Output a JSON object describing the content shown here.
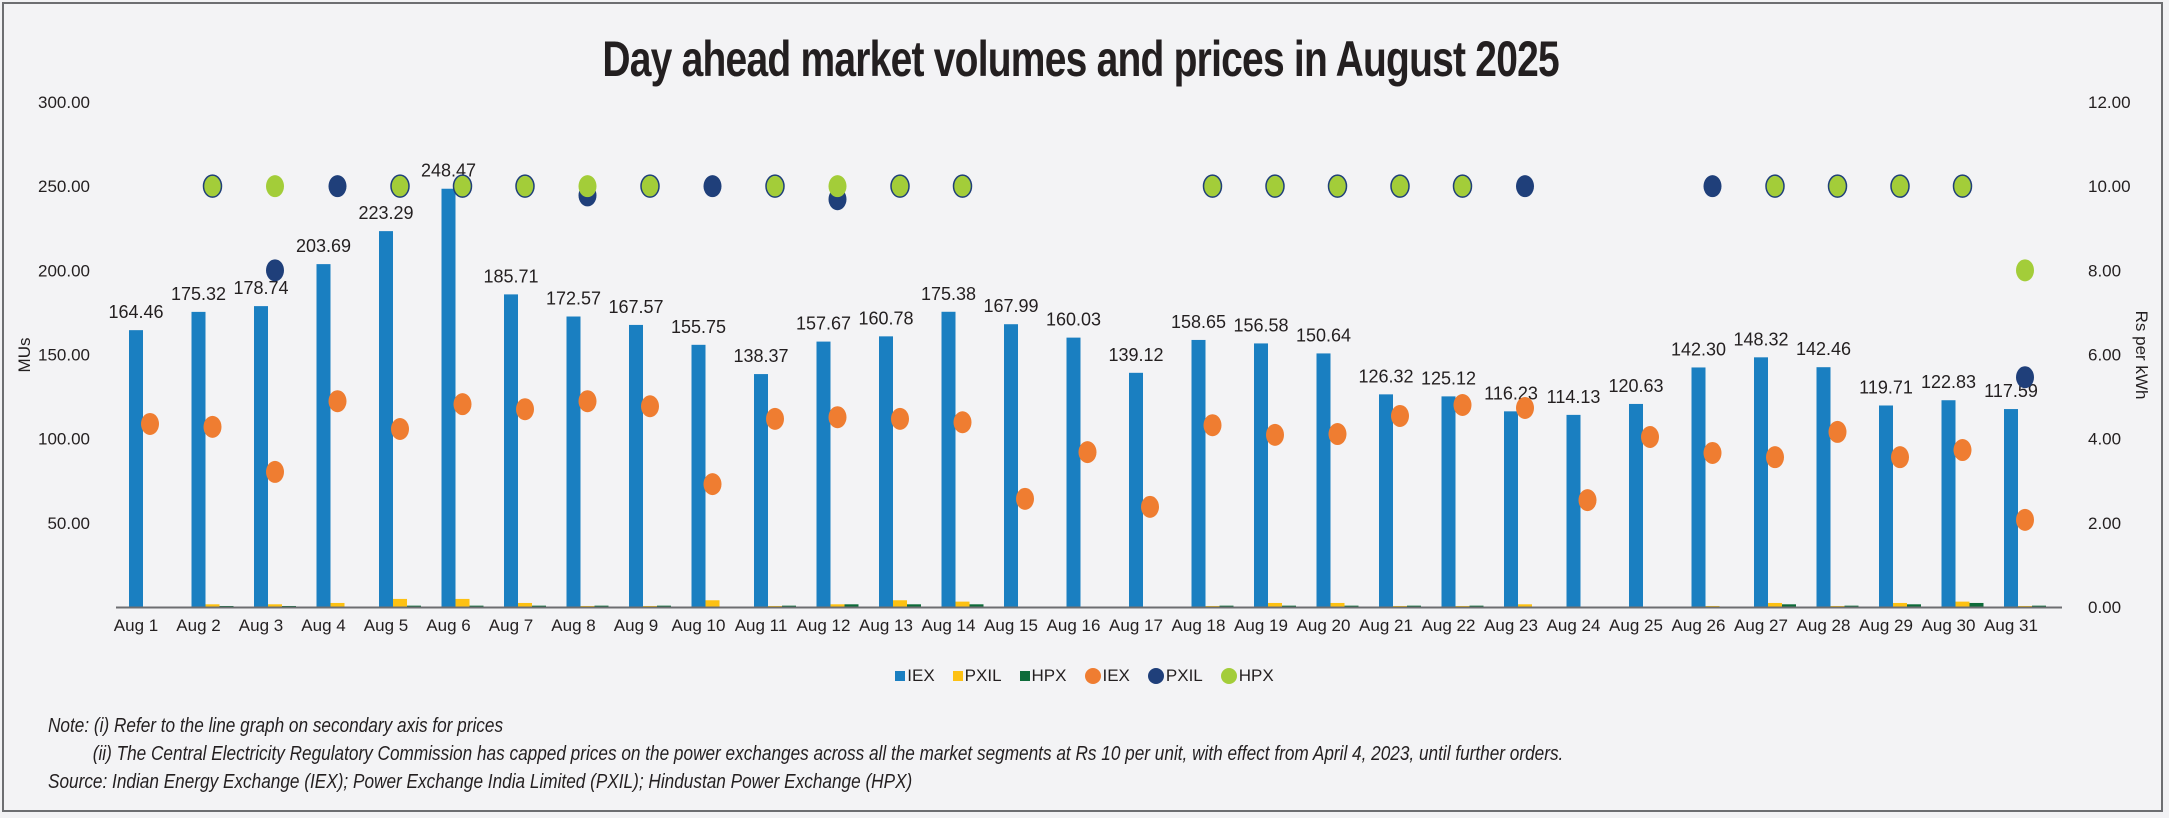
{
  "chart_data": {
    "type": "bar",
    "title": "Day ahead market volumes and prices in August 2025",
    "xlabel": "",
    "ylabel": "MUs",
    "y2label": "Rs per kWh",
    "ylim": [
      0,
      300
    ],
    "y2lim": [
      0,
      12
    ],
    "yticks": [
      "50.00",
      "100.00",
      "150.00",
      "200.00",
      "250.00",
      "300.00"
    ],
    "y2ticks": [
      "0.00",
      "2.00",
      "4.00",
      "6.00",
      "8.00",
      "10.00",
      "12.00"
    ],
    "grid": false,
    "legend_position": "bottom",
    "categories": [
      "Aug 1",
      "Aug 2",
      "Aug 3",
      "Aug 4",
      "Aug 5",
      "Aug 6",
      "Aug 7",
      "Aug 8",
      "Aug 9",
      "Aug 10",
      "Aug 11",
      "Aug 12",
      "Aug 13",
      "Aug 14",
      "Aug 15",
      "Aug 16",
      "Aug 17",
      "Aug 18",
      "Aug 19",
      "Aug 20",
      "Aug 21",
      "Aug 22",
      "Aug 23",
      "Aug 24",
      "Aug 25",
      "Aug 26",
      "Aug 27",
      "Aug 28",
      "Aug 29",
      "Aug 30",
      "Aug 31"
    ],
    "series": [
      {
        "name": "IEX",
        "kind": "bar",
        "axis": "primary",
        "color": "#1a7fc1",
        "values": [
          164.46,
          175.32,
          178.74,
          203.69,
          223.29,
          248.47,
          185.71,
          172.57,
          167.57,
          155.75,
          138.37,
          157.67,
          160.78,
          175.38,
          167.99,
          160.03,
          139.12,
          158.65,
          156.58,
          150.64,
          126.32,
          125.12,
          116.23,
          114.13,
          120.63,
          142.3,
          148.32,
          142.46,
          119.71,
          122.83,
          117.59
        ],
        "labels": [
          "164.46",
          "175.32",
          "178.74",
          "203.69",
          "223.29",
          "248.47",
          "185.71",
          "172.57",
          "167.57",
          "155.75",
          "138.37",
          "157.67",
          "160.78",
          "175.38",
          "167.99",
          "160.03",
          "139.12",
          "158.65",
          "156.58",
          "150.64",
          "126.32",
          "125.12",
          "116.23",
          "114.13",
          "120.63",
          "142.30",
          "148.32",
          "142.46",
          "119.71",
          "122.83",
          "117.59"
        ]
      },
      {
        "name": "PXIL",
        "kind": "bar",
        "axis": "primary",
        "color": "#fdc113",
        "values": [
          0,
          1.6,
          1.6,
          2.4,
          4.8,
          4.8,
          2.4,
          0.6,
          0.6,
          4.0,
          0.6,
          1.6,
          4.0,
          3.2,
          0,
          0,
          0,
          0.6,
          2.4,
          2.4,
          0.6,
          0.6,
          1.6,
          0,
          0,
          0.6,
          2.4,
          0.6,
          2.4,
          3.2,
          0.6
        ]
      },
      {
        "name": "HPX",
        "kind": "bar",
        "axis": "primary",
        "color": "#0e6b3a",
        "values": [
          0,
          0.6,
          0.6,
          0,
          0.8,
          0.8,
          0.8,
          0.8,
          0.8,
          0,
          0.8,
          1.6,
          1.6,
          1.6,
          0,
          0,
          0,
          0.8,
          0.8,
          0.8,
          0.8,
          0.8,
          0,
          0,
          0,
          0,
          1.6,
          0.8,
          1.6,
          2.4,
          0.8
        ]
      },
      {
        "name": "IEX",
        "kind": "marker",
        "axis": "secondary",
        "color": "#ef7d31",
        "values": [
          4.35,
          4.28,
          3.21,
          4.89,
          4.23,
          4.82,
          4.7,
          4.89,
          4.77,
          2.92,
          4.47,
          4.51,
          4.47,
          4.39,
          2.57,
          3.68,
          2.38,
          4.32,
          4.09,
          4.11,
          4.54,
          4.8,
          4.73,
          2.54,
          4.04,
          3.66,
          3.56,
          4.16,
          3.56,
          3.73,
          2.07
        ]
      },
      {
        "name": "PXIL",
        "kind": "marker",
        "axis": "secondary",
        "color": "#1f3f7a",
        "values": [
          null,
          10,
          8.0,
          10,
          10,
          10,
          10,
          9.78,
          10,
          10,
          10,
          9.69,
          10,
          10,
          null,
          null,
          null,
          10,
          10,
          10,
          10,
          10,
          10,
          null,
          null,
          10,
          10,
          10,
          10,
          10,
          5.46
        ]
      },
      {
        "name": "HPX",
        "kind": "marker",
        "axis": "secondary",
        "color": "#a3cd39",
        "values": [
          null,
          10,
          10,
          null,
          10,
          10,
          10,
          10,
          10,
          null,
          10,
          10,
          10,
          10,
          null,
          null,
          null,
          10,
          10,
          10,
          10,
          10,
          null,
          null,
          null,
          null,
          10,
          10,
          10,
          10,
          8.0
        ]
      }
    ]
  },
  "legend": [
    {
      "label": "IEX",
      "shape": "square",
      "color": "#1a7fc1"
    },
    {
      "label": "PXIL",
      "shape": "square",
      "color": "#fdc113"
    },
    {
      "label": "HPX",
      "shape": "square",
      "color": "#0e6b3a"
    },
    {
      "label": "IEX",
      "shape": "circle",
      "color": "#ef7d31"
    },
    {
      "label": "PXIL",
      "shape": "circle",
      "color": "#1f3f7a"
    },
    {
      "label": "HPX",
      "shape": "circle",
      "color": "#a3cd39"
    }
  ],
  "notes": {
    "note1": "Note: (i) Refer to the line graph on secondary axis for prices",
    "note2": "(ii) The Central Electricity Regulatory Commission has capped prices on the power exchanges across all the market segments at Rs 10 per unit, with effect from April 4, 2023, until further orders.",
    "source": "Source: Indian Energy Exchange (IEX); Power Exchange India Limited (PXIL); Hindustan Power Exchange (HPX)"
  }
}
